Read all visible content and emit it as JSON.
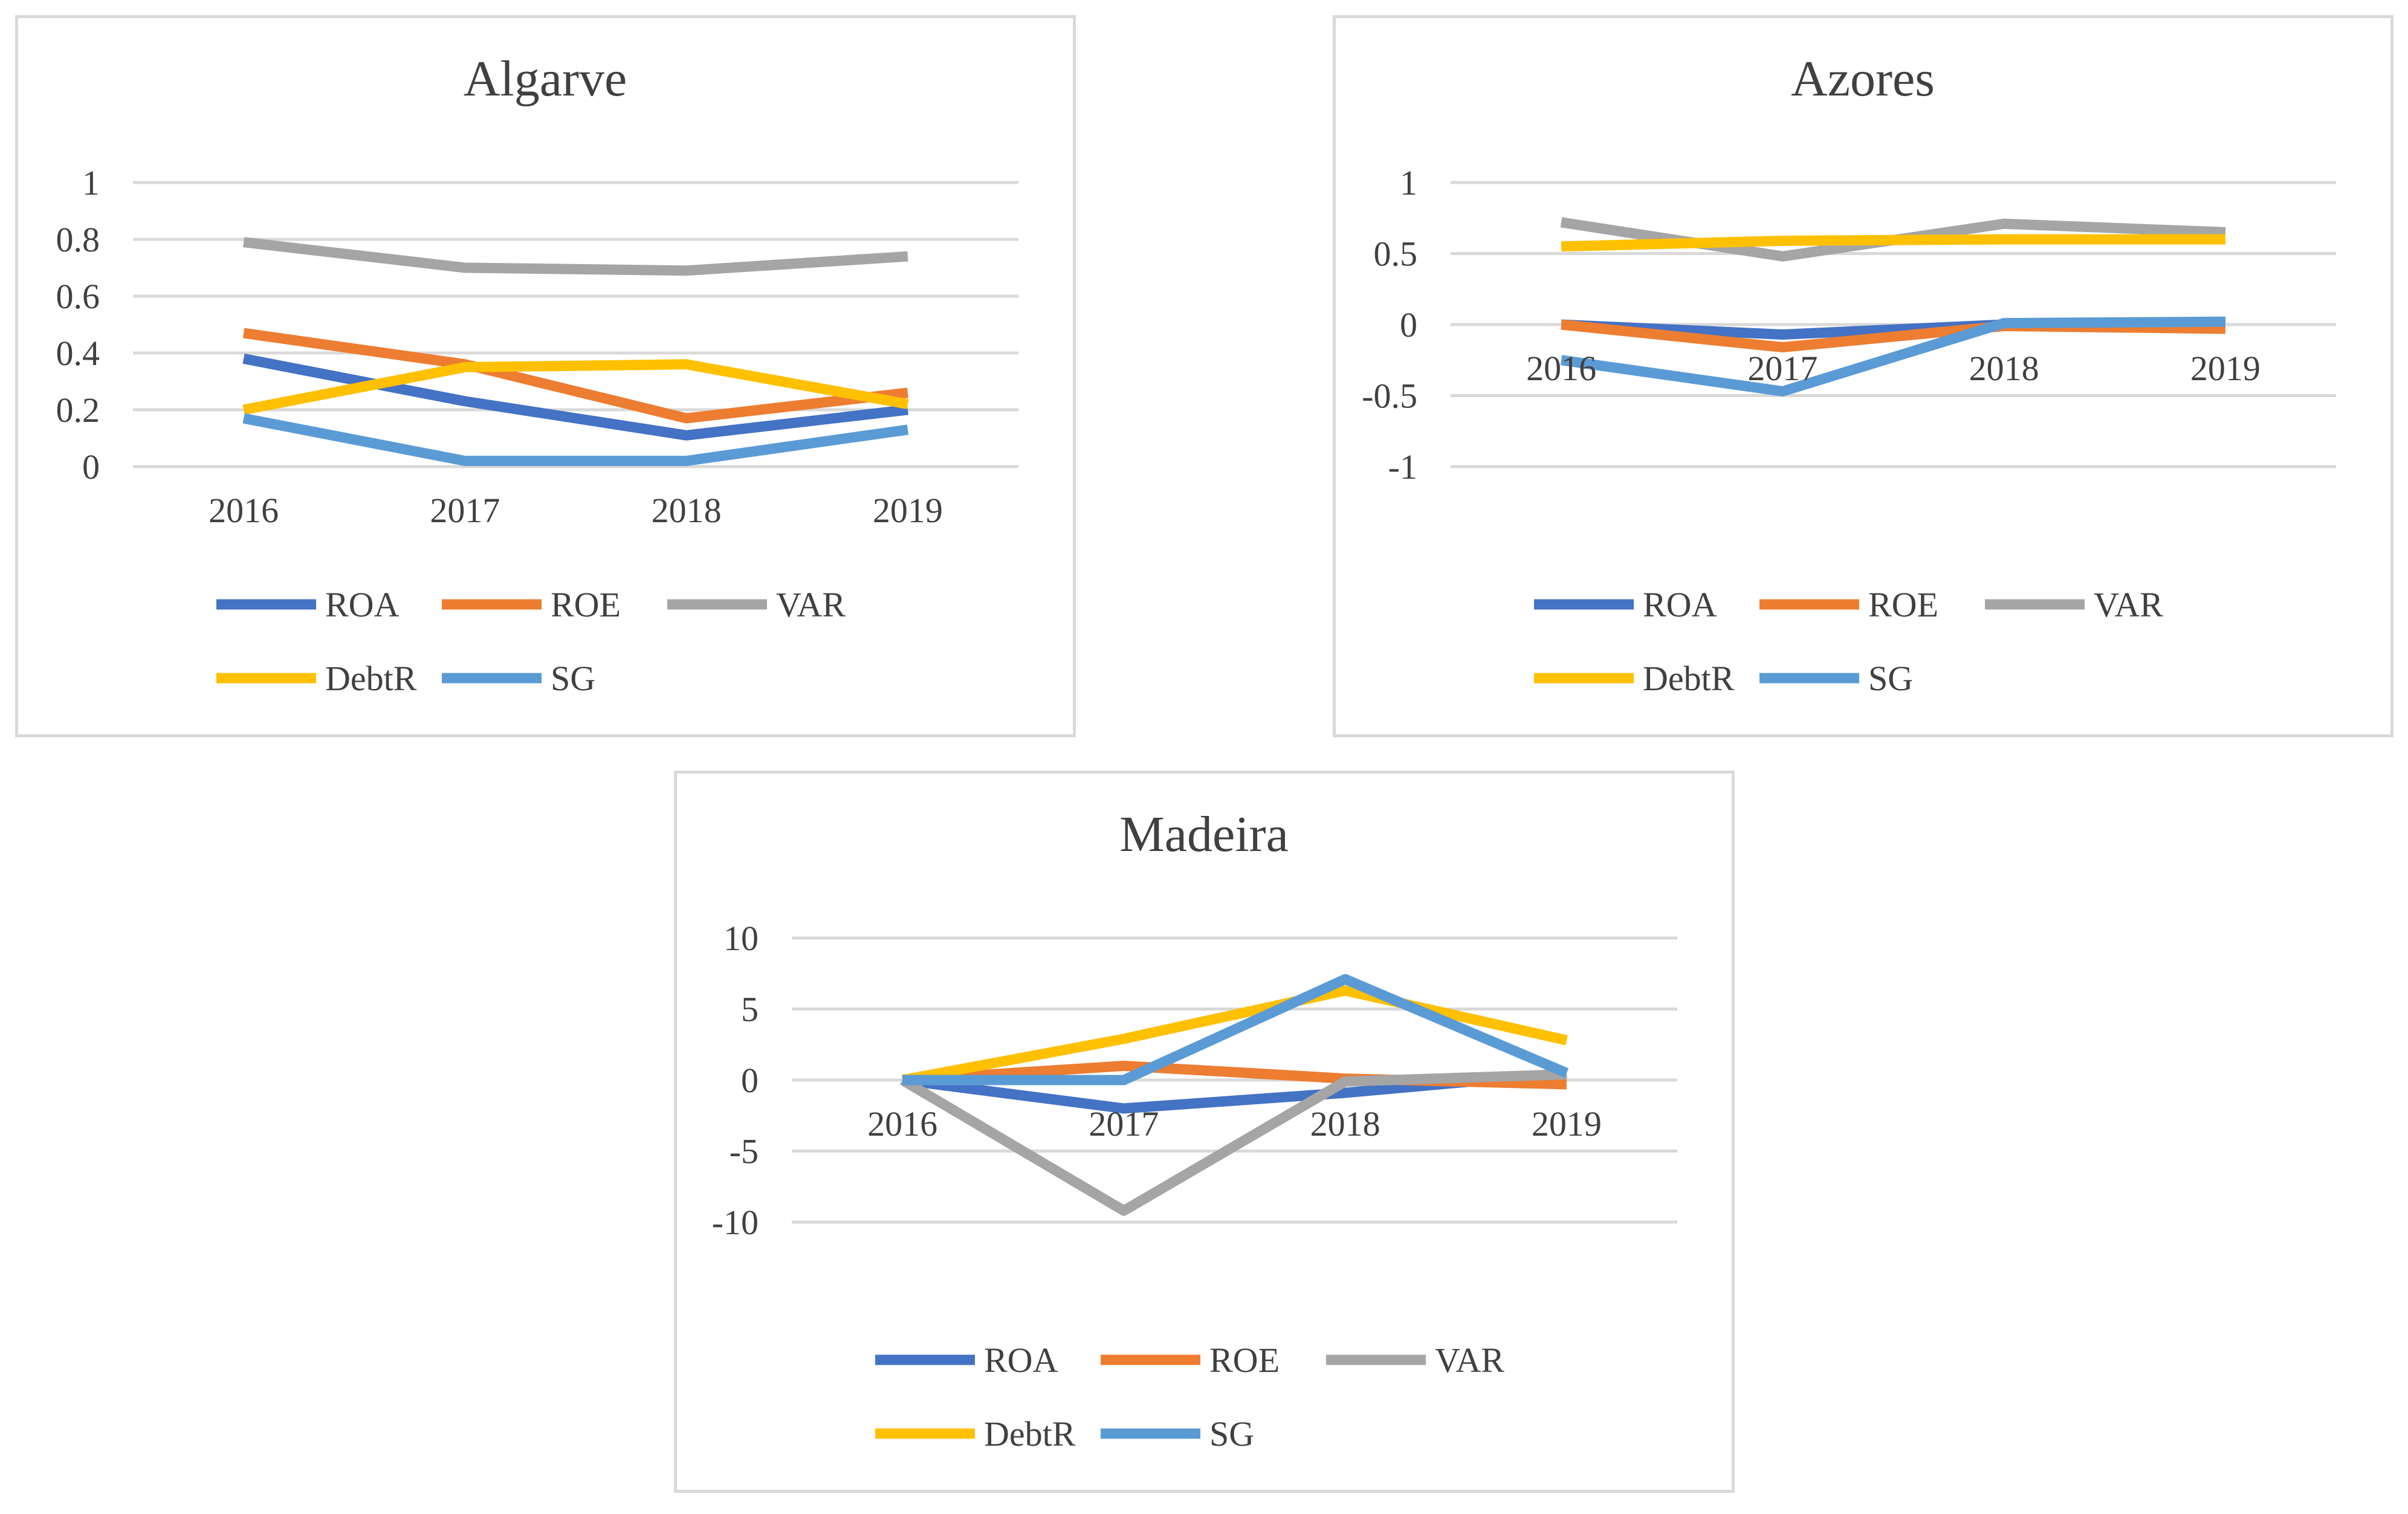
{
  "chart_data": [
    {
      "id": "algarve",
      "type": "line",
      "title": "Algarve",
      "categories": [
        "2016",
        "2017",
        "2018",
        "2019"
      ],
      "ylim": [
        0,
        1
      ],
      "yticks": [
        0,
        0.2,
        0.4,
        0.6,
        0.8,
        1
      ],
      "ytick_labels": [
        "0",
        "0.2",
        "0.4",
        "0.6",
        "0.8",
        "1"
      ],
      "grid": true,
      "legend_position": "bottom",
      "series": [
        {
          "name": "ROA",
          "color": "#4472c4",
          "values": [
            0.38,
            0.23,
            0.11,
            0.2
          ]
        },
        {
          "name": "ROE",
          "color": "#ed7d31",
          "values": [
            0.47,
            0.36,
            0.17,
            0.26
          ]
        },
        {
          "name": "VAR",
          "color": "#a5a5a5",
          "values": [
            0.79,
            0.7,
            0.69,
            0.74
          ]
        },
        {
          "name": "DebtR",
          "color": "#ffc000",
          "values": [
            0.2,
            0.35,
            0.36,
            0.22
          ]
        },
        {
          "name": "SG",
          "color": "#5b9bd5",
          "values": [
            0.17,
            0.02,
            0.02,
            0.13
          ]
        }
      ]
    },
    {
      "id": "azores",
      "type": "line",
      "title": "Azores",
      "categories": [
        "2016",
        "2017",
        "2018",
        "2019"
      ],
      "ylim": [
        -1,
        1
      ],
      "yticks": [
        -1,
        -0.5,
        0,
        0.5,
        1
      ],
      "ytick_labels": [
        "-1",
        "-0.5",
        "0",
        "0.5",
        "1"
      ],
      "grid": true,
      "legend_position": "bottom",
      "series": [
        {
          "name": "ROA",
          "color": "#4472c4",
          "values": [
            0.0,
            -0.07,
            0.0,
            0.01
          ]
        },
        {
          "name": "ROE",
          "color": "#ed7d31",
          "values": [
            0.0,
            -0.16,
            -0.01,
            -0.03
          ]
        },
        {
          "name": "VAR",
          "color": "#a5a5a5",
          "values": [
            0.72,
            0.48,
            0.71,
            0.65
          ]
        },
        {
          "name": "DebtR",
          "color": "#ffc000",
          "values": [
            0.55,
            0.59,
            0.6,
            0.6
          ]
        },
        {
          "name": "SG",
          "color": "#5b9bd5",
          "values": [
            -0.25,
            -0.47,
            0.01,
            0.02
          ]
        }
      ]
    },
    {
      "id": "madeira",
      "type": "line",
      "title": "Madeira",
      "categories": [
        "2016",
        "2017",
        "2018",
        "2019"
      ],
      "ylim": [
        -10,
        10
      ],
      "yticks": [
        -10,
        -5,
        0,
        5,
        10
      ],
      "ytick_labels": [
        "-10",
        "-5",
        "0",
        "5",
        "10"
      ],
      "grid": true,
      "legend_position": "bottom",
      "series": [
        {
          "name": "ROA",
          "color": "#4472c4",
          "values": [
            0,
            -2.0,
            -0.9,
            0.5
          ]
        },
        {
          "name": "ROE",
          "color": "#ed7d31",
          "values": [
            0,
            1.0,
            0.1,
            -0.3
          ]
        },
        {
          "name": "VAR",
          "color": "#a5a5a5",
          "values": [
            0,
            -9.2,
            -0.1,
            0.4
          ]
        },
        {
          "name": "DebtR",
          "color": "#ffc000",
          "values": [
            0,
            2.9,
            6.3,
            2.8
          ]
        },
        {
          "name": "SG",
          "color": "#5b9bd5",
          "values": [
            0,
            0.0,
            7.1,
            0.5
          ]
        }
      ]
    }
  ]
}
